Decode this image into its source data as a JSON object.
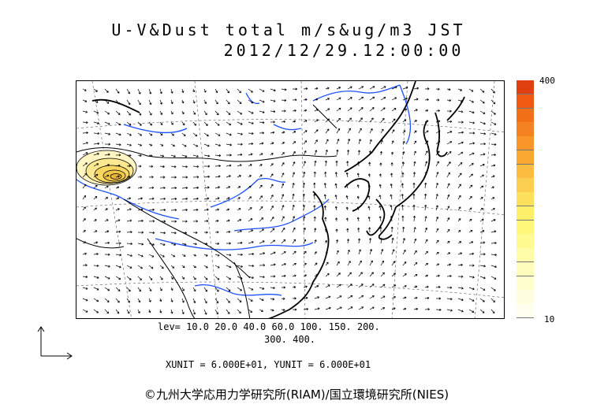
{
  "title_line1": "U-V&Dust total m/s&ug/m3 JST",
  "title_line2": "2012/12/29.12:00:00",
  "colorbar": {
    "max_label": "400",
    "min_label": "10",
    "colors": [
      "#e04010",
      "#f05a10",
      "#f27018",
      "#f58222",
      "#f8962a",
      "#fba832",
      "#fcbc40",
      "#fdcf50",
      "#fde05e",
      "#fef06a",
      "#fff77a",
      "#fffb90",
      "#fffca8",
      "#fffdbc",
      "#fffecf",
      "#fffee0",
      "#ffffef"
    ]
  },
  "levels_line1": "lev= 10.0 20.0 40.0 60.0 100. 150. 200.",
  "levels_line2": "300. 400.",
  "units": "XUNIT = 6.000E+01, YUNIT = 6.000E+01",
  "credit": "©九州大学応用力学研究所(RIAM)/国立環境研究所(NIES)",
  "map": {
    "land_color": "#000000",
    "river_color": "#1e50ff",
    "dust_plume_color": "#f5e27a"
  }
}
